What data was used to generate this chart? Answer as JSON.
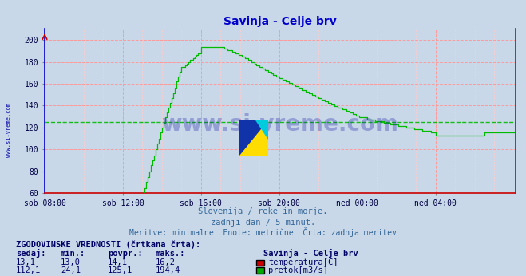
{
  "title": "Savinja - Celje brv",
  "title_color": "#0000cc",
  "bg_color": "#c8d8e8",
  "plot_bg_color": "#c8d8e8",
  "grid_color_major": "#ff9999",
  "grid_color_minor": "#ffcccc",
  "watermark_text": "www.si-vreme.com",
  "watermark_color": "#1a1aaa",
  "sidebar_text": "www.si-vreme.com",
  "sidebar_color": "#0000aa",
  "subtitle_lines": [
    "Slovenija / reke in morje.",
    "zadnji dan / 5 minut.",
    "Meritve: minimalne  Enote: metrične  Črta: zadnja meritev"
  ],
  "subtitle_color": "#336699",
  "table_header": "ZGODOVINSKE VREDNOSTI (črtkana črta):",
  "table_cols": [
    "sedaj:",
    "min.:",
    "povpr.:",
    "maks.:"
  ],
  "table_station": "Savinja - Celje brv",
  "table_rows": [
    {
      "values": [
        "13,1",
        "13,0",
        "14,1",
        "16,2"
      ],
      "label": "temperatura[C]",
      "color": "#cc0000"
    },
    {
      "values": [
        "112,1",
        "24,1",
        "125,1",
        "194,4"
      ],
      "label": "pretok[m3/s]",
      "color": "#00aa00"
    }
  ],
  "x_tick_labels": [
    "sob 08:00",
    "sob 12:00",
    "sob 16:00",
    "sob 20:00",
    "ned 00:00",
    "ned 04:00"
  ],
  "x_tick_positions": [
    0,
    48,
    96,
    144,
    192,
    240
  ],
  "x_max": 289,
  "y_ticks": [
    60,
    80,
    100,
    120,
    140,
    160,
    180,
    200
  ],
  "y_min": 60,
  "y_max": 210,
  "temp_color": "#cc0000",
  "flow_color": "#00bb00",
  "temp_avg": 14.1,
  "flow_avg": 125.1,
  "logo_colors": [
    "#1144cc",
    "#ffdd00",
    "#00cccc"
  ]
}
